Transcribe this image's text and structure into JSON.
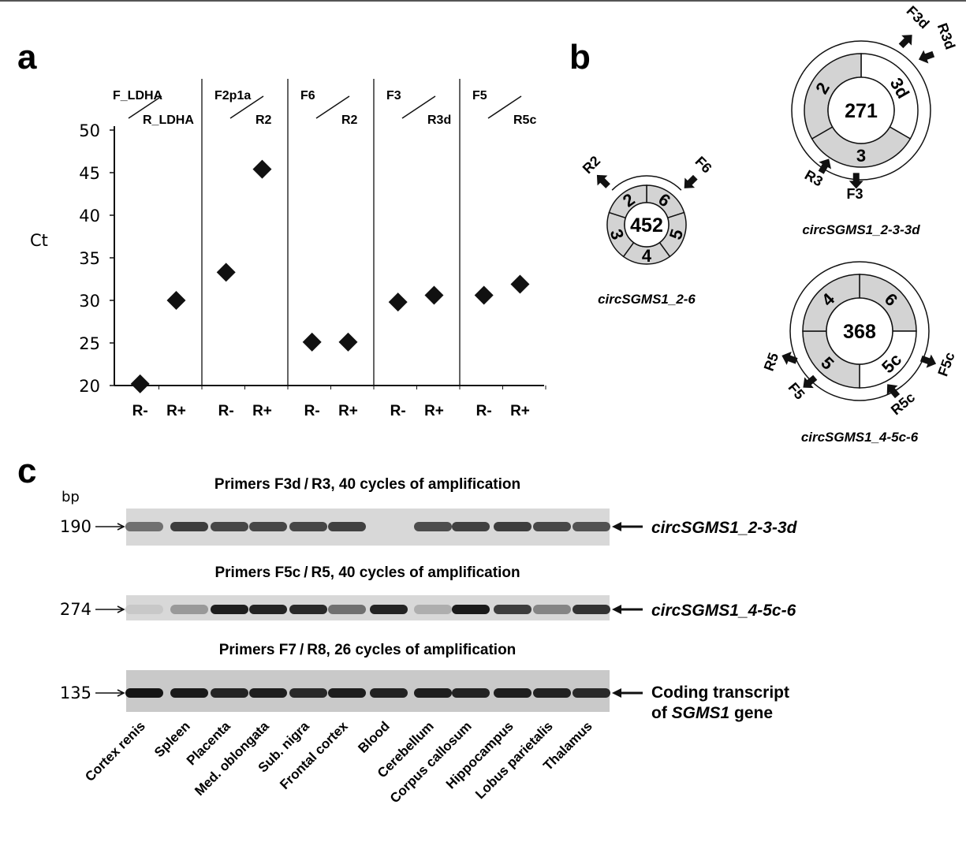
{
  "panels": {
    "a": "a",
    "b": "b",
    "c": "c"
  },
  "chart_data": {
    "type": "scatter",
    "title": "",
    "xlabel": "",
    "ylabel": "Ct",
    "ylim": [
      20,
      50
    ],
    "yticks": [
      "20",
      "25",
      "30",
      "35",
      "40",
      "45",
      "50"
    ],
    "groups": [
      {
        "primer_top": "F_LDHA",
        "primer_bottom": "R_LDHA",
        "points": [
          {
            "x": "R-",
            "y": 20.2
          },
          {
            "x": "R+",
            "y": 30.0
          }
        ]
      },
      {
        "primer_top": "F2p1a",
        "primer_bottom": "R2",
        "points": [
          {
            "x": "R-",
            "y": 33.3
          },
          {
            "x": "R+",
            "y": 45.4
          }
        ]
      },
      {
        "primer_top": "F6",
        "primer_bottom": "R2",
        "points": [
          {
            "x": "R-",
            "y": 25.1
          },
          {
            "x": "R+",
            "y": 25.1
          }
        ]
      },
      {
        "primer_top": "F3",
        "primer_bottom": "R3d",
        "points": [
          {
            "x": "R-",
            "y": 29.8
          },
          {
            "x": "R+",
            "y": 30.6
          }
        ]
      },
      {
        "primer_top": "F5",
        "primer_bottom": "R5c",
        "points": [
          {
            "x": "R-",
            "y": 30.6
          },
          {
            "x": "R+",
            "y": 31.9
          }
        ]
      }
    ],
    "marker": "diamond",
    "grid": false
  },
  "circles": [
    {
      "name": "circSGMS1_2-6",
      "size": "452",
      "segments": [
        {
          "label": "6",
          "fill": "#d3d3d3"
        },
        {
          "label": "5",
          "fill": "#d3d3d3"
        },
        {
          "label": "4",
          "fill": "#d3d3d3"
        },
        {
          "label": "3",
          "fill": "#d3d3d3"
        },
        {
          "label": "2",
          "fill": "#d3d3d3"
        }
      ],
      "primers": [
        "R2",
        "F6"
      ]
    },
    {
      "name": "circSGMS1_2-3-3d",
      "size": "271",
      "segments": [
        {
          "label": "3d",
          "fill": "#ffffff"
        },
        {
          "label": "3",
          "fill": "#d3d3d3"
        },
        {
          "label": "2",
          "fill": "#d3d3d3"
        }
      ],
      "primers": [
        "F3d",
        "R3d",
        "R3",
        "F3"
      ]
    },
    {
      "name": "circSGMS1_4-5c-6",
      "size": "368",
      "segments": [
        {
          "label": "6",
          "fill": "#d3d3d3"
        },
        {
          "label": "5c",
          "fill": "#ffffff"
        },
        {
          "label": "5",
          "fill": "#d3d3d3"
        },
        {
          "label": "4",
          "fill": "#d3d3d3"
        }
      ],
      "primers": [
        "R5",
        "F5",
        "R5c",
        "F5c"
      ]
    }
  ],
  "gel": {
    "bp_label": "bp",
    "lanes": [
      "Cortex renis",
      "Spleen",
      "Placenta",
      "Med. oblongata",
      "Sub. nigra",
      "Frontal cortex",
      "Blood",
      "Cerebellum",
      "Corpus callosum",
      "Hippocampus",
      "Lobus parietalis",
      "Thalamus"
    ],
    "rows": [
      {
        "title_pre": "Primers F3d",
        "title_post": "R3, 40 cycles of amplification",
        "bp": "190",
        "product": "circSGMS1_2-3-3d",
        "intensity": [
          0.55,
          0.8,
          0.75,
          0.75,
          0.75,
          0.78,
          0.0,
          0.72,
          0.78,
          0.8,
          0.75,
          0.7
        ]
      },
      {
        "title_pre": "Primers F5c",
        "title_post": "R5, 40 cycles of amplification",
        "bp": "274",
        "product": "circSGMS1_4-5c-6",
        "intensity": [
          0.12,
          0.35,
          0.95,
          0.92,
          0.9,
          0.55,
          0.92,
          0.25,
          0.97,
          0.8,
          0.45,
          0.85
        ]
      },
      {
        "title_pre": "Primers F7",
        "title_post": "R8, 26 cycles of amplification",
        "bp": "135",
        "product_line1": "Coding transcript",
        "product_line2_pre": "of ",
        "product_line2_gene": "SGMS1",
        "product_line2_post": " gene",
        "intensity": [
          1,
          0.97,
          0.92,
          0.95,
          0.9,
          0.95,
          0.93,
          0.95,
          0.93,
          0.95,
          0.93,
          0.9
        ]
      }
    ]
  }
}
